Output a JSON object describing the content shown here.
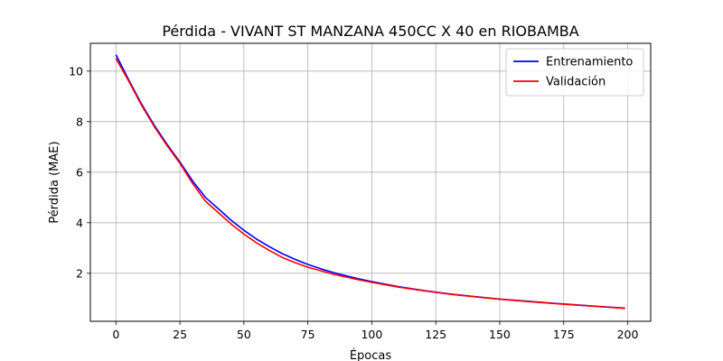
{
  "chart_data": {
    "type": "line",
    "title": "Pérdida - VIVANT ST MANZANA 450CC X 40 en RIOBAMBA",
    "xlabel": "Épocas",
    "ylabel": "Pérdida (MAE)",
    "xlim": [
      -10,
      209
    ],
    "ylim": [
      0.1,
      11.1
    ],
    "xticks": [
      0,
      25,
      50,
      75,
      100,
      125,
      150,
      175,
      200
    ],
    "yticks": [
      2,
      4,
      6,
      8,
      10
    ],
    "grid": true,
    "legend_position": "top-right",
    "series": [
      {
        "name": "Entrenamiento",
        "color": "#0000ff",
        "x": [
          0,
          5,
          10,
          15,
          20,
          25,
          30,
          35,
          40,
          45,
          50,
          55,
          60,
          65,
          70,
          75,
          80,
          85,
          90,
          95,
          100,
          110,
          120,
          130,
          140,
          150,
          160,
          170,
          180,
          190,
          199
        ],
        "y": [
          10.65,
          9.65,
          8.7,
          7.85,
          7.1,
          6.4,
          5.65,
          5.0,
          4.55,
          4.1,
          3.7,
          3.35,
          3.05,
          2.78,
          2.55,
          2.35,
          2.18,
          2.03,
          1.9,
          1.78,
          1.67,
          1.48,
          1.32,
          1.19,
          1.08,
          0.98,
          0.9,
          0.82,
          0.75,
          0.68,
          0.62
        ]
      },
      {
        "name": "Validación",
        "color": "#ff0000",
        "x": [
          0,
          5,
          10,
          15,
          20,
          25,
          30,
          35,
          40,
          45,
          50,
          55,
          60,
          65,
          70,
          75,
          80,
          85,
          90,
          95,
          100,
          110,
          120,
          130,
          140,
          150,
          160,
          170,
          180,
          190,
          199
        ],
        "y": [
          10.5,
          9.6,
          8.65,
          7.8,
          7.05,
          6.35,
          5.55,
          4.85,
          4.4,
          3.95,
          3.55,
          3.2,
          2.9,
          2.63,
          2.42,
          2.24,
          2.1,
          1.96,
          1.85,
          1.74,
          1.64,
          1.46,
          1.31,
          1.18,
          1.07,
          0.97,
          0.89,
          0.81,
          0.74,
          0.67,
          0.61
        ]
      }
    ]
  }
}
